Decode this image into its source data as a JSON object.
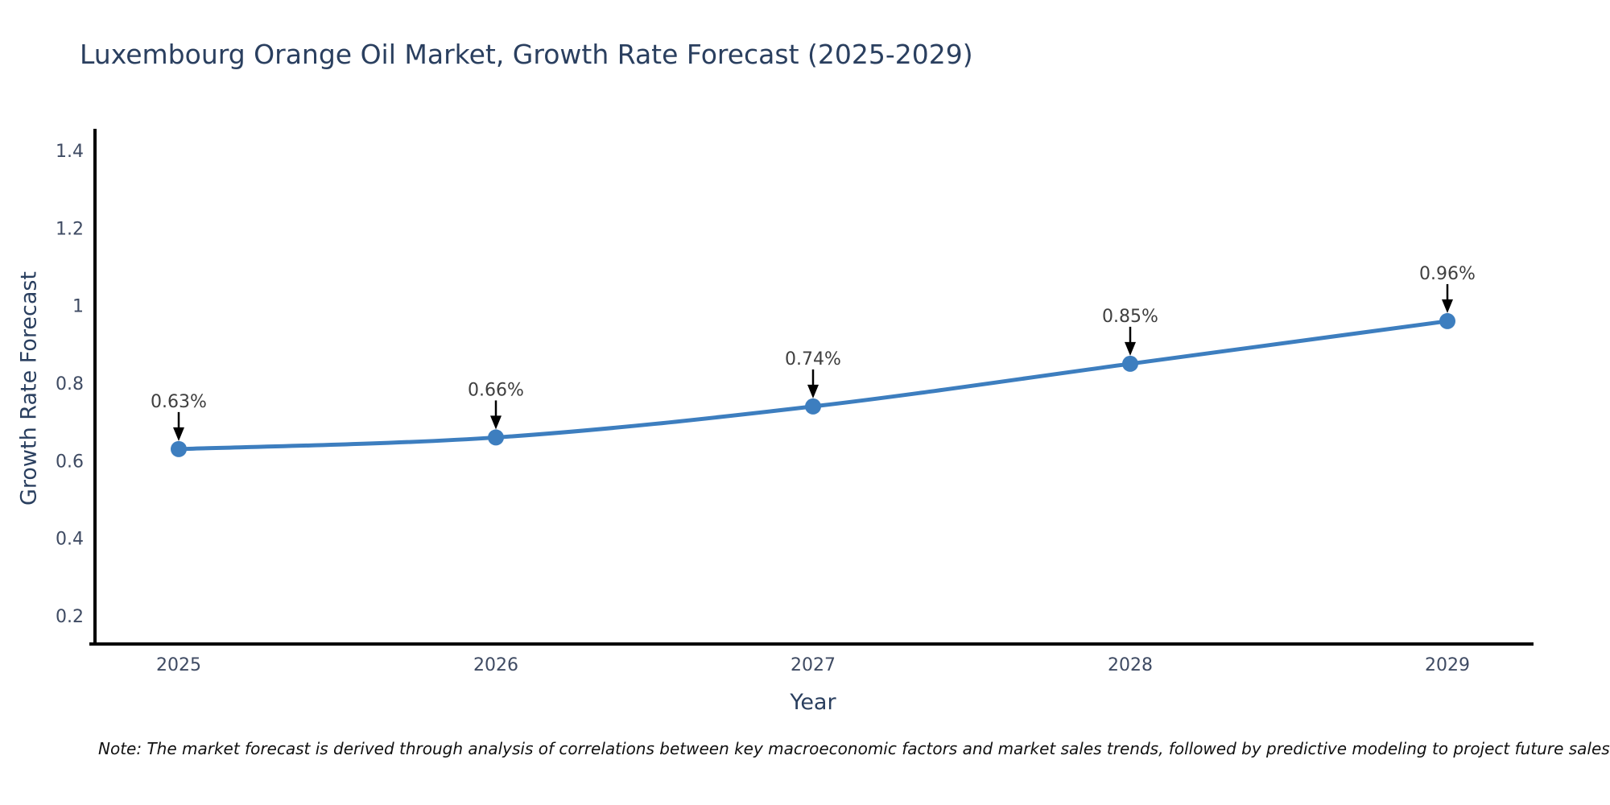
{
  "chart_data": {
    "type": "line",
    "title": "Luxembourg Orange Oil Market, Growth Rate Forecast (2025-2029)",
    "xlabel": "Year",
    "ylabel": "Growth Rate Forecast",
    "x": [
      2025,
      2026,
      2027,
      2028,
      2029
    ],
    "x_tick_labels": [
      "2025",
      "2026",
      "2027",
      "2028",
      "2029"
    ],
    "series": [
      {
        "name": "Growth Rate Forecast",
        "values": [
          0.63,
          0.66,
          0.74,
          0.85,
          0.96
        ],
        "point_labels": [
          "0.63%",
          "0.66%",
          "0.74%",
          "0.85%",
          "0.96%"
        ]
      }
    ],
    "ylim": [
      0.2,
      1.4
    ],
    "y_ticks": [
      0.2,
      0.4,
      0.6,
      0.8,
      1,
      1.2,
      1.4
    ],
    "y_tick_labels": [
      "0.2",
      "0.4",
      "0.6",
      "0.8",
      "1",
      "1.2",
      "1.4"
    ],
    "grid": false,
    "legend": false,
    "line_shape": "spline",
    "colors": {
      "line": "#3d7ebf",
      "marker": "#3d7ebf",
      "axis": "#000000",
      "annotation_arrow": "#000000",
      "annotation_text": "#3f3f3f",
      "tick_text": "#3f4b63",
      "title_text": "#2a3f5f"
    },
    "note": "Note: The market forecast is derived through analysis of correlations between key macroeconomic factors and market sales trends, followed by predictive modeling to project future sales"
  }
}
